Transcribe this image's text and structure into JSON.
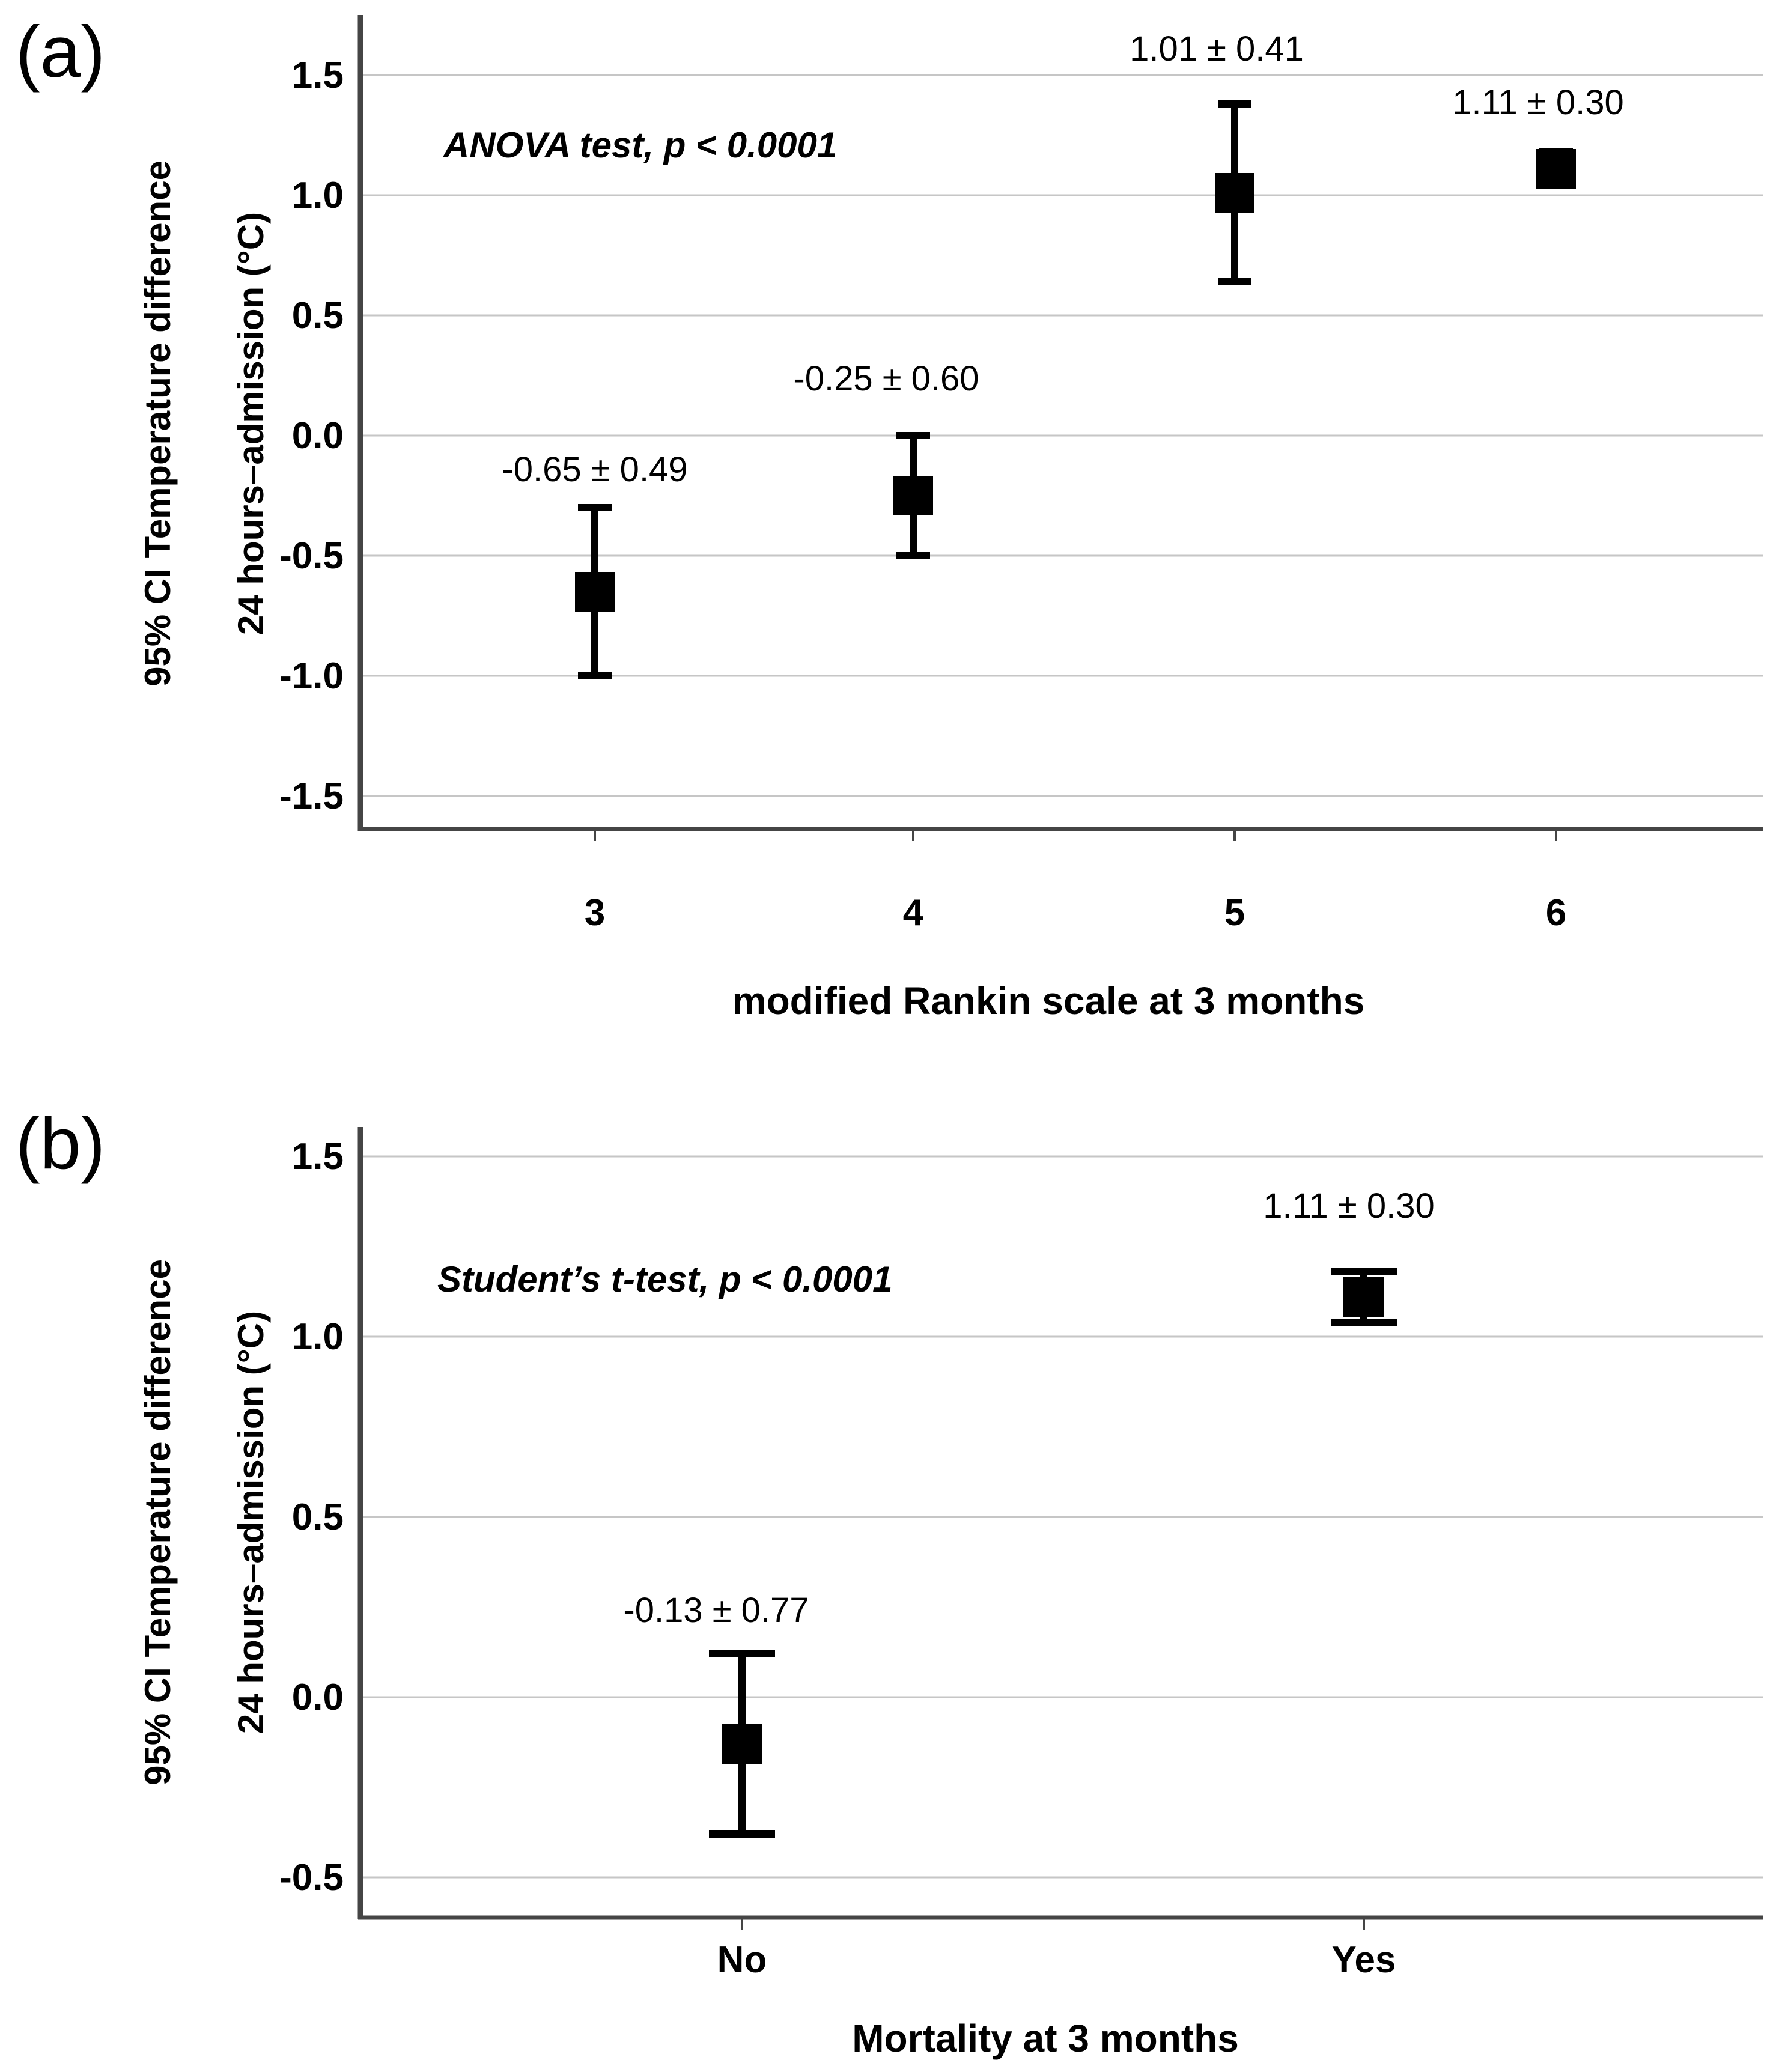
{
  "figure": {
    "colors": {
      "background": "#ffffff",
      "marker": "#000000",
      "grid": "#c6c6c6",
      "axis": "#454545",
      "text": "#000000"
    }
  },
  "chart_data": [
    {
      "type": "errorbar",
      "panel_label": "(a)",
      "annotation": "ANOVA test, p < 0.0001",
      "ylabel_line1": "95% CI Temperature difference",
      "ylabel_line2": "24 hours–admission (°C)",
      "xlabel": "modified Rankin scale at 3 months",
      "categories": [
        "3",
        "4",
        "5",
        "6"
      ],
      "y_ticks": [
        "1.5",
        "1.0",
        "0.5",
        "0.0",
        "-0.5",
        "-1.0",
        "-1.5"
      ],
      "ylim": [
        -1.64,
        1.75
      ],
      "grid": true,
      "legend": "none",
      "points": [
        {
          "category": "3",
          "mean": -0.65,
          "sd": 0.49,
          "ci_low": -1.0,
          "ci_high": -0.3,
          "label": "-0.65 ± 0.49"
        },
        {
          "category": "4",
          "mean": -0.25,
          "sd": 0.6,
          "ci_low": -0.5,
          "ci_high": 0.0,
          "label": "-0.25 ± 0.60"
        },
        {
          "category": "5",
          "mean": 1.01,
          "sd": 0.41,
          "ci_low": 0.64,
          "ci_high": 1.38,
          "label": "1.01 ± 0.41"
        },
        {
          "category": "6",
          "mean": 1.11,
          "sd": 0.3,
          "ci_low": 1.04,
          "ci_high": 1.18,
          "label": "1.11 ± 0.30"
        }
      ]
    },
    {
      "type": "errorbar",
      "panel_label": "(b)",
      "annotation": "Student’s t-test, p < 0.0001",
      "ylabel_line1": "95% CI Temperature difference",
      "ylabel_line2": "24 hours–admission (°C)",
      "xlabel": "Mortality at 3 months",
      "categories": [
        "No",
        "Yes"
      ],
      "y_ticks": [
        "1.5",
        "1.0",
        "0.5",
        "0.0",
        "-0.5"
      ],
      "ylim": [
        -0.61,
        1.61
      ],
      "grid": true,
      "legend": "none",
      "points": [
        {
          "category": "No",
          "mean": -0.13,
          "sd": 0.77,
          "ci_low": -0.38,
          "ci_high": 0.12,
          "label": "-0.13 ± 0.77"
        },
        {
          "category": "Yes",
          "mean": 1.11,
          "sd": 0.3,
          "ci_low": 1.04,
          "ci_high": 1.18,
          "label": "1.11 ± 0.30"
        }
      ]
    }
  ]
}
